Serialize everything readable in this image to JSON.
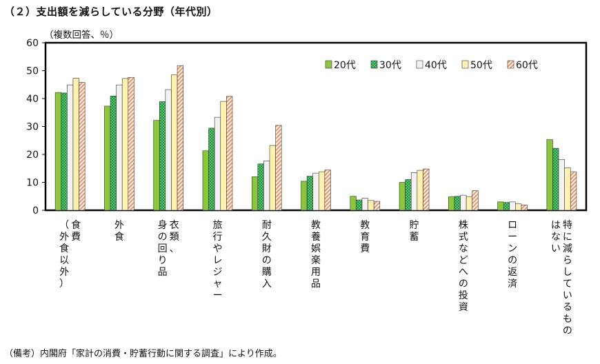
{
  "title": "（２）支出額を減らしている分野（年代別）",
  "note": "（備考）内閣府「家計の消費・貯蓄行動に関する調査」により作成。",
  "colors": {
    "20代": "#8cc63f",
    "30代": "#1a9a3a",
    "40代": "#f2f2f2",
    "50代": "#fff2b0",
    "60代": "#f5c9a8",
    "outline": "#333333",
    "axis": "#000000"
  },
  "chart_data": {
    "type": "bar",
    "title": "（２）支出額を減らしている分野（年代別）",
    "ylabel": "（複数回答、％）",
    "xlabel": "",
    "ylim": [
      0,
      60
    ],
    "yticks": [
      0,
      10,
      20,
      30,
      40,
      50,
      60
    ],
    "legend_position": "top-right",
    "categories": [
      [
        "食費",
        "（外食以外）"
      ],
      [
        "外食"
      ],
      [
        "衣類、",
        "身の回り品"
      ],
      [
        "旅行やレジャー"
      ],
      [
        "耐久財の購入"
      ],
      [
        "教養娯楽用品"
      ],
      [
        "教育費"
      ],
      [
        "貯蓄"
      ],
      [
        "株式などへの投資"
      ],
      [
        "ローンの返済"
      ],
      [
        "特に減らしているもの",
        "はない"
      ]
    ],
    "series": [
      {
        "name": "20代",
        "values": [
          42.2,
          37.3,
          32.2,
          21.3,
          12.0,
          10.4,
          5.0,
          10.0,
          4.8,
          3.0,
          25.3
        ]
      },
      {
        "name": "30代",
        "values": [
          42.0,
          40.9,
          38.9,
          29.4,
          16.6,
          12.2,
          3.7,
          11.0,
          5.0,
          2.8,
          22.2
        ]
      },
      {
        "name": "40代",
        "values": [
          44.9,
          44.9,
          43.2,
          33.3,
          17.7,
          13.3,
          4.3,
          13.5,
          5.4,
          3.0,
          18.2
        ]
      },
      {
        "name": "50代",
        "values": [
          47.3,
          47.2,
          48.5,
          39.0,
          23.2,
          13.8,
          3.5,
          14.3,
          4.9,
          2.3,
          15.2
        ]
      },
      {
        "name": "60代",
        "values": [
          45.8,
          47.6,
          51.8,
          40.8,
          30.4,
          14.4,
          3.2,
          14.8,
          7.0,
          1.9,
          13.8
        ]
      }
    ]
  }
}
